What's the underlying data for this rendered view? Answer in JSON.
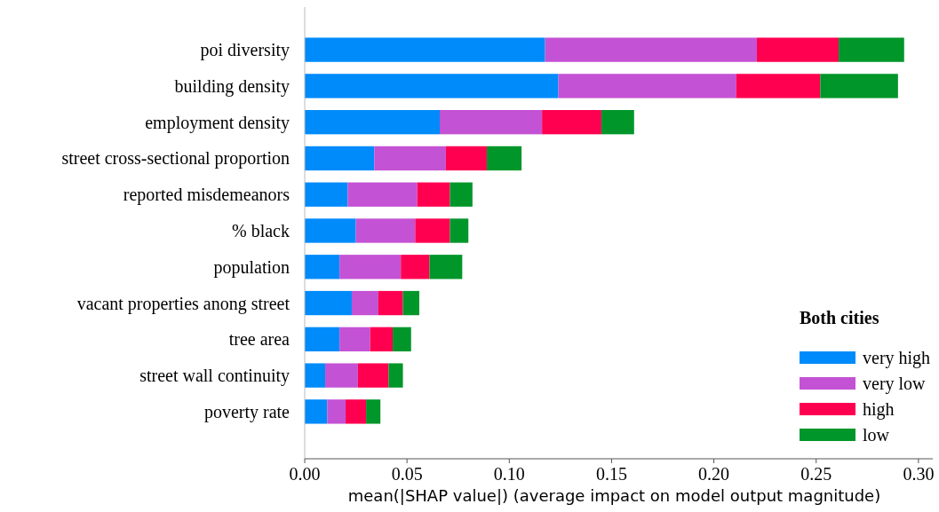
{
  "chart_data": {
    "type": "bar",
    "orientation": "horizontal",
    "stacked": true,
    "xlabel": "mean(|SHAP value|) (average impact on model output magnitude)",
    "legend_title": "Both cities",
    "legend": "bottom right",
    "grid": false,
    "categories": [
      "poi diversity",
      "building density",
      "employment density",
      "street cross-sectional proportion",
      "reported misdemeanors",
      "% black",
      "population",
      "vacant properties anong street",
      "tree area",
      "street wall continuity",
      "poverty rate"
    ],
    "xlim": [
      0,
      0.307
    ],
    "xticks": [
      {
        "value": 0,
        "label": "0.00"
      },
      {
        "value": 0.05,
        "label": "0.05"
      },
      {
        "value": 0.1,
        "label": "0.10"
      },
      {
        "value": 0.15,
        "label": "0.15"
      },
      {
        "value": 0.2,
        "label": "0.20"
      },
      {
        "value": 0.25,
        "label": "0.25"
      },
      {
        "value": 0.3,
        "label": "0.30"
      }
    ],
    "series": [
      {
        "name": "very high",
        "color": "#008bfb",
        "values": [
          0.1175,
          0.124,
          0.066,
          0.034,
          0.021,
          0.025,
          0.017,
          0.023,
          0.017,
          0.01,
          0.011
        ]
      },
      {
        "name": "very low",
        "color": "#c452d4",
        "values": [
          0.1035,
          0.087,
          0.05,
          0.035,
          0.034,
          0.029,
          0.03,
          0.013,
          0.015,
          0.016,
          0.009
        ]
      },
      {
        "name": "high",
        "color": "#ff0051",
        "values": [
          0.04,
          0.041,
          0.029,
          0.02,
          0.016,
          0.017,
          0.014,
          0.012,
          0.011,
          0.015,
          0.01
        ]
      },
      {
        "name": "low",
        "color": "#00962a",
        "values": [
          0.032,
          0.038,
          0.016,
          0.017,
          0.011,
          0.009,
          0.016,
          0.008,
          0.009,
          0.007,
          0.007
        ]
      }
    ]
  }
}
